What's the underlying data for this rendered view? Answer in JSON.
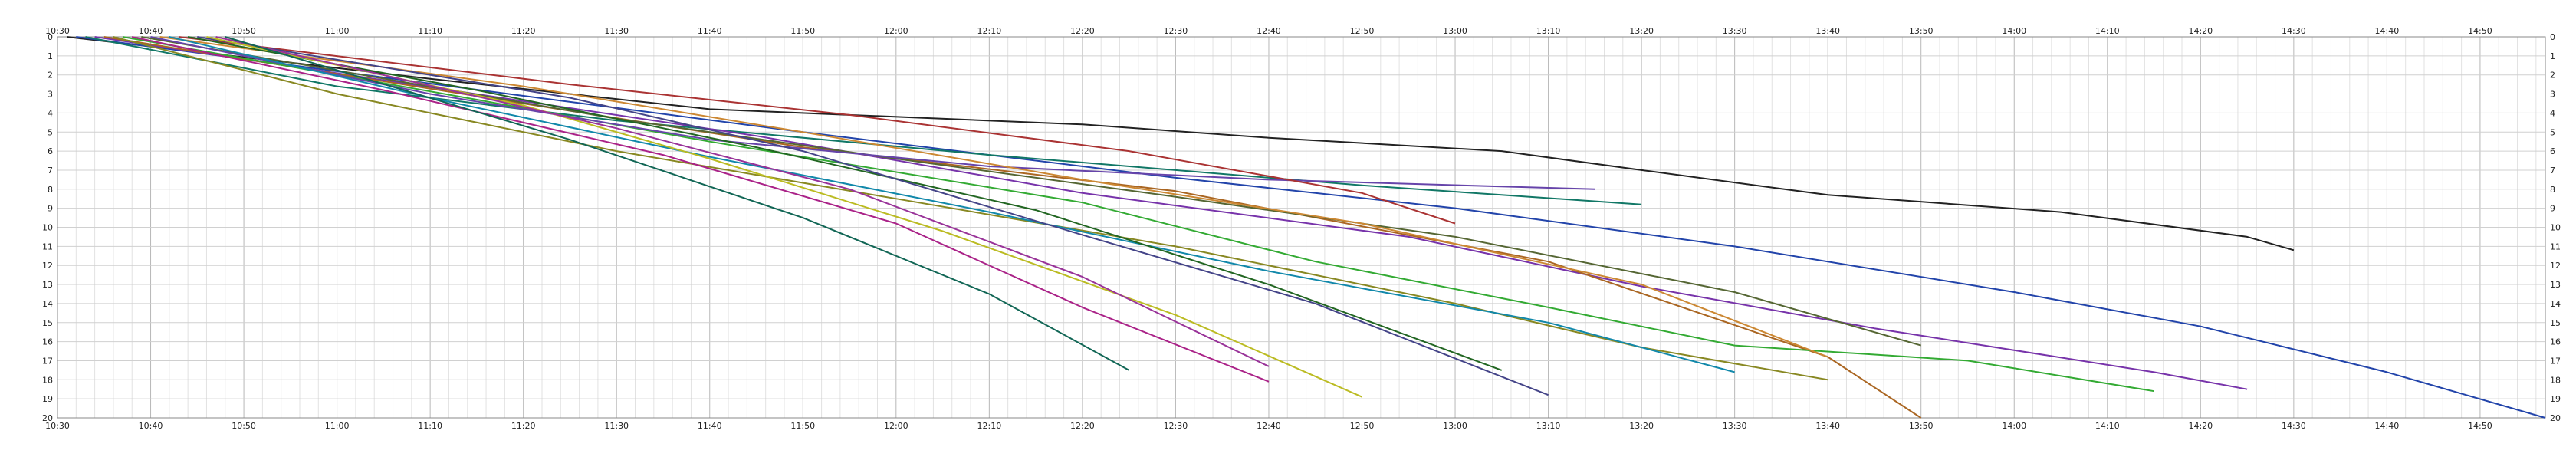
{
  "chart_data": {
    "type": "line",
    "title": "",
    "xlabel": "",
    "ylabel": "",
    "x_ticks": [
      "10:30",
      "10:40",
      "10:50",
      "11:00",
      "11:10",
      "11:20",
      "11:30",
      "11:40",
      "11:50",
      "12:00",
      "12:10",
      "12:20",
      "12:30",
      "12:40",
      "12:50",
      "13:00",
      "13:10",
      "13:20",
      "13:30",
      "13:40",
      "13:50",
      "14:00",
      "14:10",
      "14:20",
      "14:30",
      "14:40",
      "14:50"
    ],
    "xlim_minutes_from": "10:30",
    "xlim": [
      "10:30",
      "14:57"
    ],
    "stations": [
      "0",
      "1",
      "2",
      "3",
      "4",
      "5",
      "6",
      "7",
      "8",
      "9",
      "10",
      "11",
      "12",
      "13",
      "14",
      "15",
      "16",
      "17",
      "18",
      "19",
      "20"
    ],
    "grid": true,
    "line_colors": [
      "#222222",
      "#2244aa",
      "#117766",
      "#7733aa",
      "#aa6622",
      "#888822",
      "#33aa33",
      "#aa2288",
      "#556633",
      "#6644aa",
      "#cc8833",
      "#1188aa",
      "#aa3333",
      "#226622",
      "#444488",
      "#bbbb22",
      "#993399",
      "#116655"
    ],
    "series": [
      {
        "x": [
          "10:31",
          "11:10",
          "11:40",
          "12:20",
          "12:40",
          "13:05",
          "13:20",
          "13:40",
          "14:05",
          "14:25",
          "14:30"
        ],
        "y": [
          0,
          2.2,
          3.8,
          4.6,
          5.3,
          6.0,
          7.0,
          8.3,
          9.2,
          10.5,
          11.2
        ]
      },
      {
        "x": [
          "10:32",
          "11:20",
          "11:50",
          "12:30",
          "13:00",
          "13:30",
          "14:00",
          "14:20",
          "14:40",
          "14:57"
        ],
        "y": [
          0,
          3.1,
          5.0,
          7.4,
          9.0,
          11.0,
          13.4,
          15.2,
          17.6,
          20.0
        ]
      },
      {
        "x": [
          "10:33",
          "11:00",
          "11:30",
          "12:10",
          "12:50",
          "13:20"
        ],
        "y": [
          0,
          2.6,
          4.4,
          6.2,
          7.8,
          8.8
        ]
      },
      {
        "x": [
          "10:34",
          "11:08",
          "11:45",
          "12:20",
          "12:55",
          "13:20",
          "13:45",
          "14:15",
          "14:25"
        ],
        "y": [
          0,
          2.5,
          5.2,
          8.2,
          10.5,
          13.1,
          15.3,
          17.6,
          18.5
        ]
      },
      {
        "x": [
          "10:35",
          "11:20",
          "11:50",
          "12:30",
          "13:10",
          "13:40",
          "13:50"
        ],
        "y": [
          0,
          3.5,
          5.8,
          8.1,
          11.8,
          16.8,
          20.0
        ]
      },
      {
        "x": [
          "10:36",
          "11:00",
          "11:30",
          "12:00",
          "12:30",
          "13:00",
          "13:20",
          "13:40"
        ],
        "y": [
          0,
          3.0,
          6.0,
          8.5,
          11.0,
          14.0,
          16.3,
          18.0
        ]
      },
      {
        "x": [
          "10:37",
          "11:15",
          "11:40",
          "12:20",
          "12:45",
          "13:10",
          "13:30",
          "13:55",
          "14:15"
        ],
        "y": [
          0,
          3.3,
          5.5,
          8.7,
          11.8,
          14.2,
          16.2,
          17.0,
          18.6
        ]
      },
      {
        "x": [
          "10:38",
          "11:05",
          "11:35",
          "12:00",
          "12:20",
          "12:40"
        ],
        "y": [
          0,
          2.8,
          6.2,
          9.8,
          14.2,
          18.1
        ]
      },
      {
        "x": [
          "10:39",
          "11:30",
          "12:00",
          "12:30",
          "13:00",
          "13:30",
          "13:50"
        ],
        "y": [
          0,
          4.3,
          6.4,
          8.4,
          10.5,
          13.4,
          16.2
        ]
      },
      {
        "x": [
          "10:40",
          "11:10",
          "11:40",
          "12:10",
          "12:40",
          "13:15"
        ],
        "y": [
          0,
          3.0,
          5.4,
          6.8,
          7.5,
          8.0
        ]
      },
      {
        "x": [
          "10:41",
          "11:20",
          "11:50",
          "12:20",
          "12:50",
          "13:20",
          "13:40"
        ],
        "y": [
          0,
          2.6,
          5.0,
          7.5,
          9.8,
          13.0,
          16.8
        ]
      },
      {
        "x": [
          "10:42",
          "11:10",
          "11:40",
          "12:10",
          "12:40",
          "13:10",
          "13:30"
        ],
        "y": [
          0,
          3.2,
          6.3,
          9.2,
          12.3,
          15.0,
          17.6
        ]
      },
      {
        "x": [
          "10:43",
          "11:25",
          "11:55",
          "12:25",
          "12:50",
          "13:00"
        ],
        "y": [
          0,
          2.5,
          4.1,
          6.0,
          8.2,
          9.8
        ]
      },
      {
        "x": [
          "10:44",
          "11:15",
          "11:45",
          "12:15",
          "12:40",
          "13:05"
        ],
        "y": [
          0,
          2.8,
          5.8,
          9.1,
          13.0,
          17.5
        ]
      },
      {
        "x": [
          "10:45",
          "11:25",
          "11:50",
          "12:20",
          "12:45",
          "13:10"
        ],
        "y": [
          0,
          3.2,
          6.0,
          10.4,
          14.0,
          18.8
        ]
      },
      {
        "x": [
          "10:46",
          "11:20",
          "11:40",
          "12:05",
          "12:30",
          "12:50"
        ],
        "y": [
          0,
          3.6,
          6.4,
          10.2,
          14.6,
          18.9
        ]
      },
      {
        "x": [
          "10:47",
          "11:30",
          "11:55",
          "12:20",
          "12:40"
        ],
        "y": [
          0,
          4.8,
          8.0,
          12.6,
          17.3
        ]
      },
      {
        "x": [
          "10:48",
          "11:25",
          "11:50",
          "12:10",
          "12:25"
        ],
        "y": [
          0,
          5.4,
          9.5,
          13.5,
          17.5
        ]
      }
    ]
  }
}
